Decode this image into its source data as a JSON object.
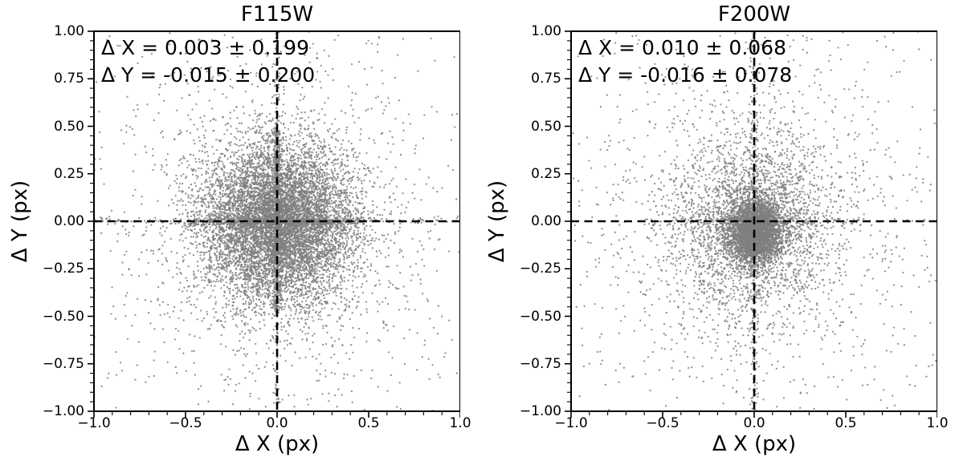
{
  "figure": {
    "background": "#ffffff",
    "text_color": "#000000",
    "point_color": "#7f7f7f",
    "crosshair_color": "#000000",
    "spine_color": "#000000"
  },
  "chart_data": [
    {
      "id": "F115W",
      "type": "scatter",
      "title": "F115W",
      "xlabel": "Δ X (px)",
      "ylabel": "Δ Y (px)",
      "xlim": [
        -1.0,
        1.0
      ],
      "ylim": [
        -1.0,
        1.0
      ],
      "grid": false,
      "xticks": {
        "values": [
          -1.0,
          -0.5,
          0.0,
          0.5,
          1.0
        ],
        "labels": [
          "−1.0",
          "−0.5",
          "0.0",
          "0.5",
          "1.0"
        ],
        "minor_step": 0.1
      },
      "yticks": {
        "values": [
          1.0,
          0.75,
          0.5,
          0.25,
          0.0,
          -0.25,
          -0.5,
          -0.75,
          -1.0
        ],
        "labels": [
          "1.00",
          "0.75",
          "0.50",
          "0.25",
          "0.00",
          "−0.25",
          "−0.50",
          "−0.75",
          "−1.00"
        ],
        "minor_step": 0.05
      },
      "annotation": [
        "Δ X = 0.003 ± 0.199",
        "Δ Y = -0.015 ± 0.200"
      ],
      "stats": {
        "dx_mean": 0.003,
        "dx_sigma": 0.199,
        "dy_mean": -0.015,
        "dy_sigma": 0.2
      },
      "crosshair": {
        "x": 0.0,
        "y": 0.0,
        "line_style": "dashed"
      },
      "cloud": {
        "seed": 20115,
        "components": [
          {
            "kind": "gaussian",
            "n": 8200,
            "cx": 0.003,
            "cy": -0.015,
            "sx": 0.2,
            "sy": 0.205
          },
          {
            "kind": "gaussian",
            "n": 1500,
            "cx": 0.0,
            "cy": 0.0,
            "sx": 0.42,
            "sy": 0.46
          },
          {
            "kind": "hband",
            "n": 560,
            "xmin": -0.48,
            "xmax": 0.48,
            "cy": 0.0,
            "sy": 0.012
          },
          {
            "kind": "hband",
            "n": 150,
            "xmin": -1.0,
            "xmax": 1.0,
            "cy": 0.0,
            "sy": 0.01
          },
          {
            "kind": "vband",
            "n": 560,
            "ymin": -0.48,
            "ymax": 0.48,
            "cx": 0.0,
            "sx": 0.012
          },
          {
            "kind": "vband",
            "n": 150,
            "ymin": -1.0,
            "ymax": 1.0,
            "cx": 0.0,
            "sx": 0.01
          },
          {
            "kind": "uniform",
            "n": 260,
            "xmin": -1.0,
            "xmax": 1.0,
            "ymin": -1.0,
            "ymax": 1.0
          }
        ]
      }
    },
    {
      "id": "F200W",
      "type": "scatter",
      "title": "F200W",
      "xlabel": "Δ X (px)",
      "ylabel": "Δ Y (px)",
      "xlim": [
        -1.0,
        1.0
      ],
      "ylim": [
        -1.0,
        1.0
      ],
      "grid": false,
      "xticks": {
        "values": [
          -1.0,
          -0.5,
          0.0,
          0.5,
          1.0
        ],
        "labels": [
          "−1.0",
          "−0.5",
          "0.0",
          "0.5",
          "1.0"
        ],
        "minor_step": 0.1
      },
      "yticks": {
        "values": [
          1.0,
          0.75,
          0.5,
          0.25,
          0.0,
          -0.25,
          -0.5,
          -0.75,
          -1.0
        ],
        "labels": [
          "1.00",
          "0.75",
          "0.50",
          "0.25",
          "0.00",
          "−0.25",
          "−0.50",
          "−0.75",
          "−1.00"
        ],
        "minor_step": 0.05
      },
      "annotation": [
        "Δ X = 0.010 ± 0.068",
        "Δ Y = -0.016 ± 0.078"
      ],
      "stats": {
        "dx_mean": 0.01,
        "dx_sigma": 0.068,
        "dy_mean": -0.016,
        "dy_sigma": 0.078
      },
      "crosshair": {
        "x": 0.0,
        "y": 0.0,
        "line_style": "dashed"
      },
      "cloud": {
        "seed": 20200,
        "components": [
          {
            "kind": "gaussian",
            "n": 3800,
            "cx": 0.005,
            "cy": -0.055,
            "sx": 0.07,
            "sy": 0.08
          },
          {
            "kind": "gaussian",
            "n": 2300,
            "cx": -0.01,
            "cy": -0.03,
            "sx": 0.21,
            "sy": 0.23
          },
          {
            "kind": "gaussian",
            "n": 1400,
            "cx": 0.0,
            "cy": 0.0,
            "sx": 0.45,
            "sy": 0.48
          },
          {
            "kind": "vband",
            "n": 220,
            "ymin": -1.0,
            "ymax": 1.0,
            "cx": 0.0,
            "sx": 0.012
          },
          {
            "kind": "hband",
            "n": 130,
            "xmin": -0.6,
            "xmax": 0.6,
            "cy": 0.0,
            "sy": 0.012
          },
          {
            "kind": "uniform",
            "n": 240,
            "xmin": -1.0,
            "xmax": 1.0,
            "ymin": -1.0,
            "ymax": 1.0
          }
        ]
      }
    }
  ]
}
